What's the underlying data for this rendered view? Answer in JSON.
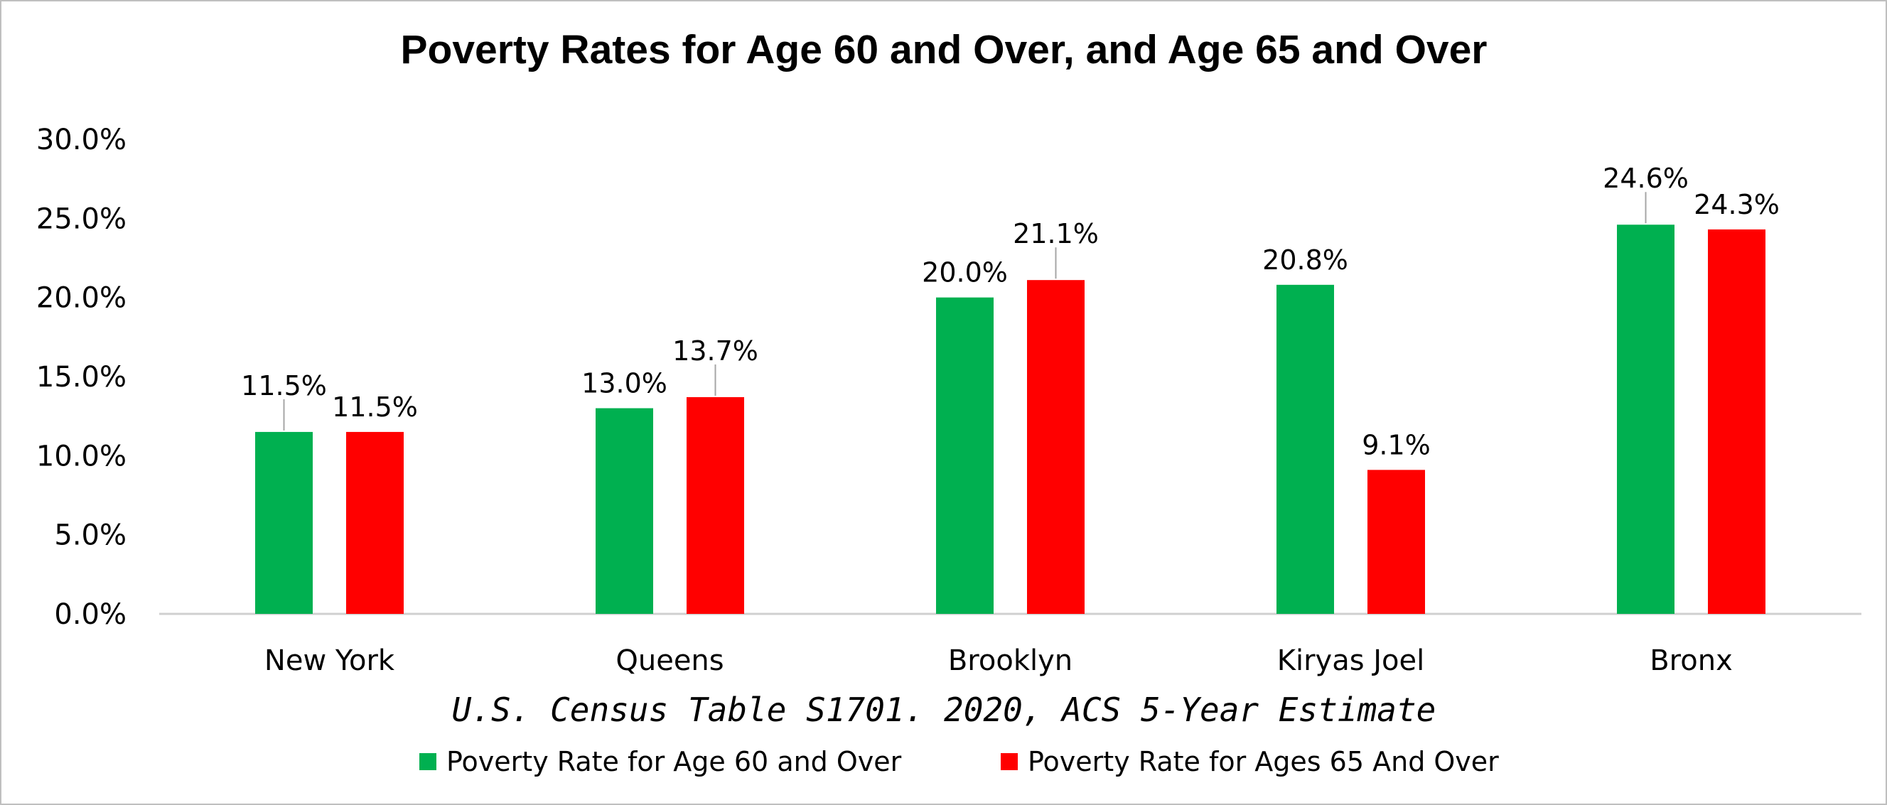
{
  "chart_data": {
    "type": "bar",
    "title": "Poverty Rates for Age 60 and Over, and Age 65 and Over",
    "xlabel": "U.S. Census Table S1701. 2020, ACS 5-Year Estimate",
    "ylabel": "",
    "categories": [
      "New York",
      "Queens",
      "Brooklyn",
      "Kiryas Joel",
      "Bronx"
    ],
    "series": [
      {
        "name": "Poverty Rate for Age 60 and Over",
        "color": "#00b050",
        "values": [
          11.5,
          13.0,
          20.0,
          20.8,
          24.6
        ],
        "labels": [
          "11.5%",
          "13.0%",
          "20.0%",
          "20.8%",
          "24.6%"
        ]
      },
      {
        "name": "Poverty Rate for Ages 65 And Over",
        "color": "#ff0000",
        "values": [
          11.5,
          13.7,
          21.1,
          9.1,
          24.3
        ],
        "labels": [
          "11.5%",
          "13.7%",
          "21.1%",
          "9.1%",
          "24.3%"
        ]
      }
    ],
    "ylim": [
      0,
      30
    ],
    "yticks": [
      0,
      5,
      10,
      15,
      20,
      25,
      30
    ],
    "ytick_labels": [
      "0.0%",
      "5.0%",
      "10.0%",
      "15.0%",
      "20.0%",
      "25.0%",
      "30.0%"
    ],
    "grid": false,
    "legend_position": "bottom"
  }
}
